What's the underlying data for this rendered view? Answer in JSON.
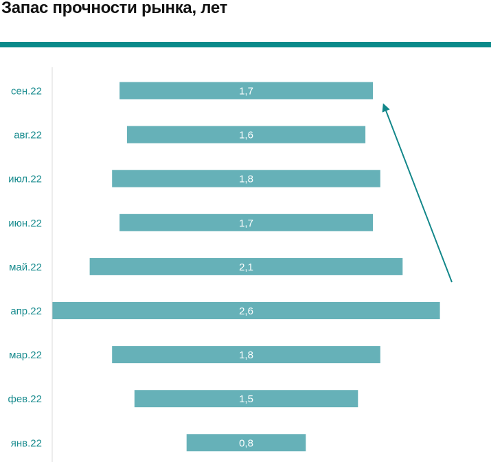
{
  "title": "Запас прочности рынка, лет",
  "colors": {
    "accent": "#0a8a8a",
    "bar": "#66b1b8",
    "label": "#1a8c8f",
    "axis": "#d9d9d9",
    "arrow": "#13878a"
  },
  "chart_data": {
    "type": "bar",
    "orientation": "horizontal-centered",
    "title": "Запас прочности рынка, лет",
    "categories": [
      "сен.22",
      "авг.22",
      "июл.22",
      "июн.22",
      "май.22",
      "апр.22",
      "мар.22",
      "фев.22",
      "янв.22"
    ],
    "values": [
      1.7,
      1.6,
      1.8,
      1.7,
      2.1,
      2.6,
      1.8,
      1.5,
      0.8
    ],
    "value_labels": [
      "1,7",
      "1,6",
      "1,8",
      "1,7",
      "2,1",
      "2,6",
      "1,8",
      "1,5",
      "0,8"
    ],
    "trend_arrow": "up"
  }
}
